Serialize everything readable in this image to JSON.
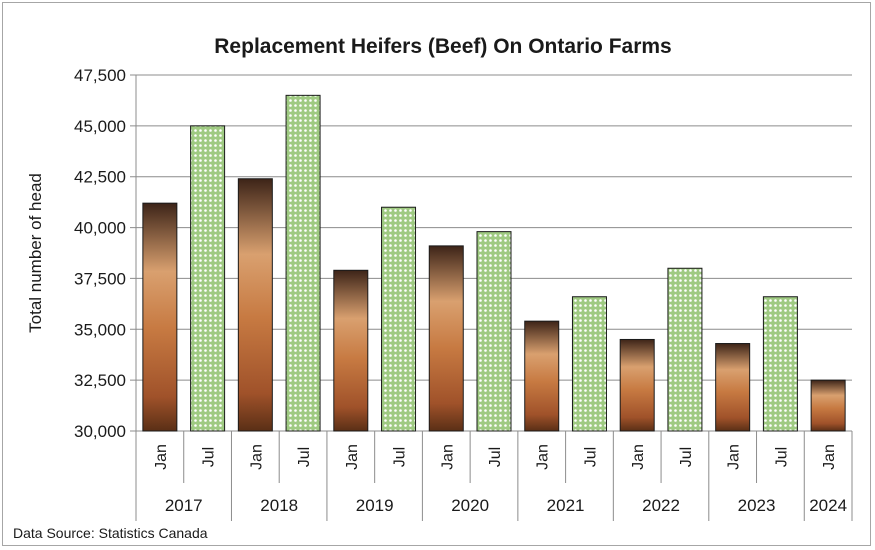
{
  "chart_data": {
    "type": "bar",
    "title": "Replacement Heifers (Beef) On Ontario Farms",
    "ylabel": "Total number of head",
    "xlabel": "",
    "ylim": [
      30000,
      47500
    ],
    "yticks": [
      30000,
      32500,
      35000,
      37500,
      40000,
      42500,
      45000,
      47500
    ],
    "ytick_labels": [
      "30,000",
      "32,500",
      "35,000",
      "37,500",
      "40,000",
      "42,500",
      "45,000",
      "47,500"
    ],
    "grid": true,
    "legend": "none",
    "categories": [
      {
        "year": "2017",
        "month": "Jan"
      },
      {
        "year": "2017",
        "month": "Jul"
      },
      {
        "year": "2018",
        "month": "Jan"
      },
      {
        "year": "2018",
        "month": "Jul"
      },
      {
        "year": "2019",
        "month": "Jan"
      },
      {
        "year": "2019",
        "month": "Jul"
      },
      {
        "year": "2020",
        "month": "Jan"
      },
      {
        "year": "2020",
        "month": "Jul"
      },
      {
        "year": "2021",
        "month": "Jan"
      },
      {
        "year": "2021",
        "month": "Jul"
      },
      {
        "year": "2022",
        "month": "Jan"
      },
      {
        "year": "2022",
        "month": "Jul"
      },
      {
        "year": "2023",
        "month": "Jan"
      },
      {
        "year": "2023",
        "month": "Jul"
      },
      {
        "year": "2024",
        "month": "Jan"
      }
    ],
    "years": [
      "2017",
      "2018",
      "2019",
      "2020",
      "2021",
      "2022",
      "2023",
      "2024"
    ],
    "values": [
      41200,
      45000,
      42400,
      46500,
      37900,
      41000,
      39100,
      39800,
      35400,
      36600,
      34500,
      38000,
      34300,
      36600,
      32500
    ],
    "colors": {
      "jan_dark": "#4a2e1f",
      "jan_mid": "#d79b6a",
      "jan_low": "#b5622c",
      "jul_fill": "#a9d08e",
      "jul_dots": "#ffffff",
      "outline": "#1a1a1a",
      "grid": "#8c8c8c"
    },
    "source": "Data Source: Statistics Canada"
  }
}
